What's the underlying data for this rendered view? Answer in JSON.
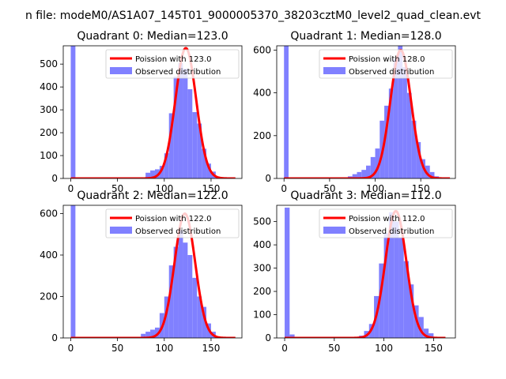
{
  "figure": {
    "suptitle": "n file: modeM0/AS1A07_145T01_9000005370_38203cztM0_level2_quad_clean.evt"
  },
  "colors": {
    "poisson_line": "#ff0000",
    "observed_bars": "#8080ff",
    "axes": "#000000",
    "background": "#ffffff"
  },
  "chart_data": [
    {
      "type": "bar",
      "title": "Quadrant 0: Median=123.0",
      "xlabel": "",
      "ylabel": "",
      "xlim": [
        -8,
        183
      ],
      "ylim": [
        0,
        580
      ],
      "xticks": [
        0,
        50,
        100,
        150
      ],
      "yticks": [
        0,
        100,
        200,
        300,
        400,
        500
      ],
      "legend_position": "upper right",
      "series": [
        {
          "name": "Poission with 123.0",
          "type": "line",
          "mean": 123.0,
          "peak": 570,
          "x_range": [
            0,
            176
          ]
        },
        {
          "name": "Observed distribution",
          "type": "histogram",
          "bin_width": 5,
          "bins": [
            0,
            75,
            80,
            85,
            90,
            95,
            100,
            105,
            110,
            115,
            120,
            125,
            130,
            135,
            140,
            145,
            150,
            155
          ],
          "counts": [
            600,
            5,
            25,
            35,
            40,
            55,
            110,
            285,
            445,
            505,
            480,
            390,
            290,
            240,
            130,
            65,
            30,
            6
          ]
        }
      ]
    },
    {
      "type": "bar",
      "title": "Quadrant 1: Median=128.0",
      "xlabel": "",
      "ylabel": "",
      "xlim": [
        -8,
        188
      ],
      "ylim": [
        0,
        620
      ],
      "xticks": [
        0,
        50,
        100,
        150
      ],
      "yticks": [
        0,
        200,
        400,
        600
      ],
      "legend_position": "upper right",
      "series": [
        {
          "name": "Poission with 128.0",
          "type": "line",
          "mean": 128.0,
          "peak": 600,
          "x_range": [
            0,
            182
          ]
        },
        {
          "name": "Observed distribution",
          "type": "histogram",
          "bin_width": 5,
          "bins": [
            0,
            70,
            75,
            80,
            85,
            90,
            95,
            100,
            105,
            110,
            115,
            120,
            125,
            130,
            135,
            140,
            145,
            150,
            155,
            160,
            165
          ],
          "counts": [
            640,
            10,
            20,
            30,
            40,
            60,
            100,
            140,
            270,
            340,
            420,
            560,
            620,
            520,
            400,
            270,
            170,
            90,
            60,
            30,
            10
          ]
        }
      ]
    },
    {
      "type": "bar",
      "title": "Quadrant 2: Median=122.0",
      "xlabel": "",
      "ylabel": "",
      "xlim": [
        -8,
        183
      ],
      "ylim": [
        0,
        640
      ],
      "xticks": [
        0,
        50,
        100,
        150
      ],
      "yticks": [
        0,
        200,
        400,
        600
      ],
      "legend_position": "upper right",
      "series": [
        {
          "name": "Poission with 122.0",
          "type": "line",
          "mean": 122.0,
          "peak": 600,
          "x_range": [
            0,
            176
          ]
        },
        {
          "name": "Observed distribution",
          "type": "histogram",
          "bin_width": 5,
          "bins": [
            0,
            70,
            75,
            80,
            85,
            90,
            95,
            100,
            105,
            110,
            115,
            120,
            125,
            130,
            135,
            140,
            145,
            150,
            155
          ],
          "counts": [
            640,
            5,
            20,
            30,
            40,
            50,
            120,
            200,
            350,
            440,
            520,
            460,
            400,
            290,
            200,
            150,
            70,
            30,
            5
          ]
        }
      ]
    },
    {
      "type": "bar",
      "title": "Quadrant 3: Median=112.0",
      "xlabel": "",
      "ylabel": "",
      "xlim": [
        -8,
        172
      ],
      "ylim": [
        0,
        570
      ],
      "xticks": [
        0,
        50,
        100,
        150
      ],
      "yticks": [
        0,
        100,
        200,
        300,
        400,
        500
      ],
      "legend_position": "upper right",
      "series": [
        {
          "name": "Poission with 112.0",
          "type": "line",
          "mean": 112.0,
          "peak": 545,
          "x_range": [
            0,
            162
          ]
        },
        {
          "name": "Observed distribution",
          "type": "histogram",
          "bin_width": 5,
          "bins": [
            0,
            5,
            70,
            75,
            80,
            85,
            90,
            95,
            100,
            105,
            110,
            115,
            120,
            125,
            130,
            135,
            140,
            145,
            150
          ],
          "counts": [
            560,
            15,
            5,
            10,
            30,
            60,
            180,
            320,
            450,
            540,
            500,
            430,
            330,
            230,
            140,
            90,
            40,
            20,
            5
          ]
        }
      ]
    }
  ]
}
